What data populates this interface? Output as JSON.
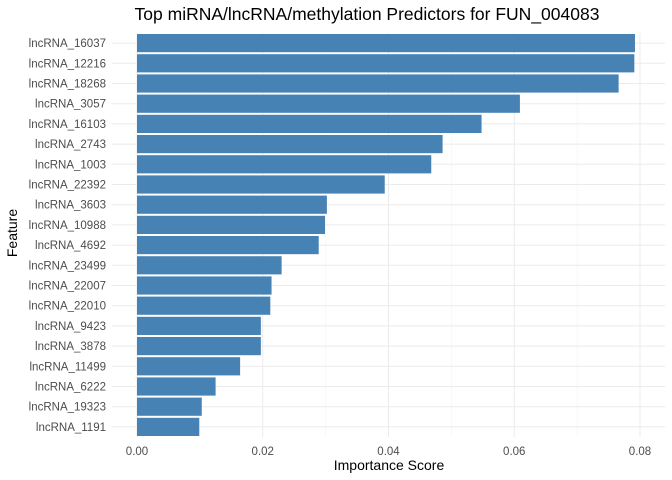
{
  "chart_data": {
    "type": "bar",
    "orientation": "horizontal",
    "title": "Top miRNA/lncRNA/methylation Predictors for FUN_004083",
    "xlabel": "Importance Score",
    "ylabel": "Feature",
    "xlim": [
      0,
      0.081
    ],
    "xticks": [
      0.0,
      0.02,
      0.04,
      0.06,
      0.08
    ],
    "xtick_labels": [
      "0.00",
      "0.02",
      "0.04",
      "0.06",
      "0.08"
    ],
    "bar_color": "#4682b4",
    "grid": true,
    "legend": "none",
    "categories": [
      "lncRNA_16037",
      "lncRNA_12216",
      "lncRNA_18268",
      "lncRNA_3057",
      "lncRNA_16103",
      "lncRNA_2743",
      "lncRNA_1003",
      "lncRNA_22392",
      "lncRNA_3603",
      "lncRNA_10988",
      "lncRNA_4692",
      "lncRNA_23499",
      "lncRNA_22007",
      "lncRNA_22010",
      "lncRNA_9423",
      "lncRNA_3878",
      "lncRNA_11499",
      "lncRNA_6222",
      "lncRNA_19323",
      "lncRNA_1191"
    ],
    "values": [
      0.0792,
      0.0791,
      0.0766,
      0.0609,
      0.0548,
      0.0486,
      0.0468,
      0.0394,
      0.0302,
      0.0299,
      0.0289,
      0.023,
      0.0214,
      0.0212,
      0.0197,
      0.0197,
      0.0164,
      0.0125,
      0.0103,
      0.0099
    ]
  }
}
